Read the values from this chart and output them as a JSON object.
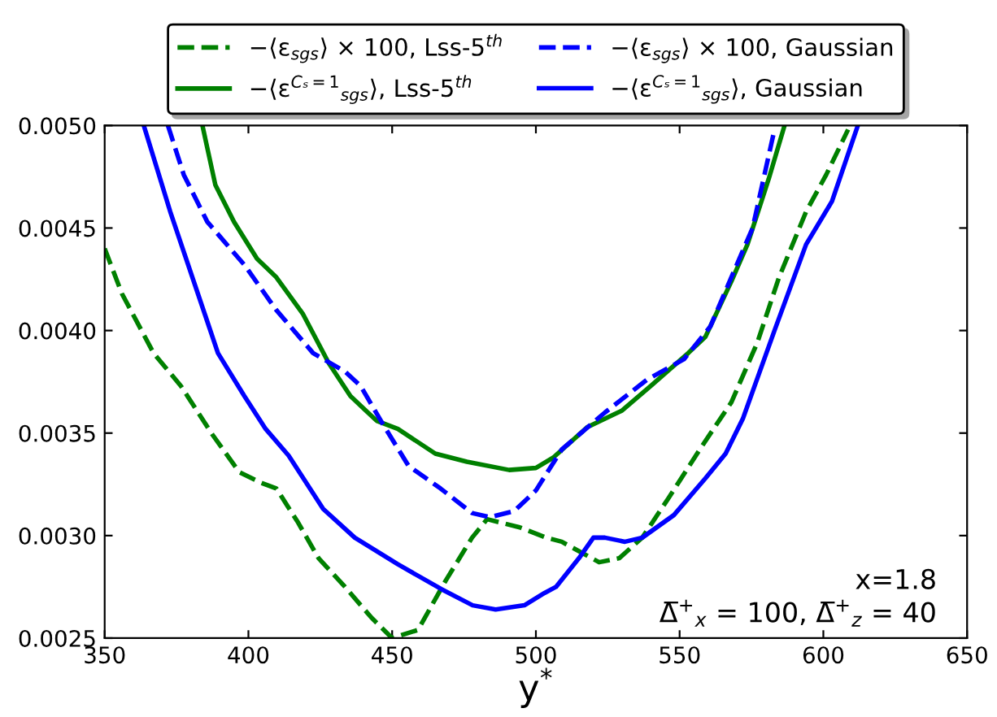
{
  "chart_data": {
    "type": "line",
    "xlabel": "y$^{*}$",
    "xlim": [
      350,
      650
    ],
    "xticks": [
      350,
      400,
      450,
      500,
      550,
      600,
      650
    ],
    "ylim": [
      0.0025,
      0.005
    ],
    "yticks": [
      {
        "value": 0.0025,
        "label": "0.0025"
      },
      {
        "value": 0.003,
        "label": "0.0030"
      },
      {
        "value": 0.0035,
        "label": "0.0035"
      },
      {
        "value": 0.004,
        "label": "0.0040"
      },
      {
        "value": 0.0045,
        "label": "0.0045"
      },
      {
        "value": 0.005,
        "label": "0.0050"
      }
    ],
    "grid": false,
    "legend": "top",
    "marker": "none",
    "annotations": [
      "x=1.8",
      "Δ̅$^{+}$$_{x}$ = 100, Δ̅$^{+}$$_{z}$ = 40"
    ],
    "series": [
      {
        "name": "−⟨ε$_{sgs}$⟩ × 100, Lss-5$^{th}$",
        "color": "#008000",
        "line_style": "dashed",
        "x": [
          350,
          356,
          367,
          376.5,
          387.6,
          396.8,
          404,
          409.7,
          417,
          424.4,
          433.6,
          442.8,
          450,
          459,
          468.6,
          477.8,
          483,
          494.4,
          503.6,
          509,
          522,
          529,
          537,
          546,
          557,
          568,
          577,
          584.6,
          594,
          601,
          608.6
        ],
        "values": [
          0.0044,
          0.00418,
          0.00389,
          0.00373,
          0.00349,
          0.00331,
          0.00326,
          0.00323,
          0.00307,
          0.00289,
          0.00275,
          0.0026,
          0.0025,
          0.00254,
          0.00278,
          0.00299,
          0.00308,
          0.00304,
          0.00299,
          0.00297,
          0.00287,
          0.00289,
          0.00299,
          0.00318,
          0.00342,
          0.00365,
          0.00394,
          0.00426,
          0.00458,
          0.00476,
          0.00498
        ]
      },
      {
        "name": "−⟨ε$^{Cₛ=1}$$_{sgs}$⟩, Lss-5$^{th}$",
        "color": "#008000",
        "line_style": "solid",
        "x": [
          384,
          388.5,
          395,
          403,
          409.7,
          419,
          428,
          435.5,
          444.6,
          452,
          465,
          476,
          490.7,
          500,
          506,
          518,
          530,
          540,
          553,
          559,
          568,
          573.6,
          581,
          586.5
        ],
        "values": [
          0.005,
          0.00471,
          0.00453,
          0.00435,
          0.00426,
          0.00408,
          0.00384,
          0.00368,
          0.00356,
          0.00352,
          0.0034,
          0.00336,
          0.00332,
          0.00333,
          0.00338,
          0.00353,
          0.00361,
          0.00373,
          0.00389,
          0.00397,
          0.00424,
          0.00442,
          0.00474,
          0.005
        ]
      },
      {
        "name": "−⟨ε$_{sgs}$⟩ × 100, Gaussian",
        "color": "#0000ff",
        "line_style": "dashed",
        "x": [
          372,
          377.5,
          385.7,
          398.6,
          409.7,
          422.5,
          433.6,
          439,
          446.5,
          455.7,
          466.8,
          477.8,
          484,
          492.5,
          500,
          509,
          524,
          538.6,
          551.5,
          560.7,
          568,
          575.4,
          583
        ],
        "values": [
          0.005,
          0.00476,
          0.00453,
          0.00432,
          0.0041,
          0.00389,
          0.0038,
          0.00373,
          0.00355,
          0.00334,
          0.00323,
          0.00311,
          0.00309,
          0.00312,
          0.00322,
          0.00342,
          0.0036,
          0.00376,
          0.00386,
          0.00402,
          0.00426,
          0.0045,
          0.00498
        ]
      },
      {
        "name": "−⟨ε$^{Cₛ=1}$$_{sgs}$⟩, Gaussian",
        "color": "#0000ff",
        "line_style": "solid",
        "x": [
          363.6,
          372.8,
          389.4,
          398.6,
          406,
          414,
          426,
          437,
          452,
          467,
          478,
          486,
          496,
          503,
          507,
          515,
          520,
          524,
          531,
          537,
          548,
          559,
          566,
          572,
          583,
          594,
          603,
          612
        ],
        "values": [
          0.005,
          0.00458,
          0.00389,
          0.00368,
          0.00352,
          0.00339,
          0.00313,
          0.00299,
          0.00286,
          0.00274,
          0.00266,
          0.00264,
          0.00266,
          0.00272,
          0.00275,
          0.00289,
          0.00299,
          0.00299,
          0.00297,
          0.00299,
          0.0031,
          0.00328,
          0.0034,
          0.00357,
          0.004,
          0.00442,
          0.00463,
          0.005
        ]
      }
    ]
  }
}
